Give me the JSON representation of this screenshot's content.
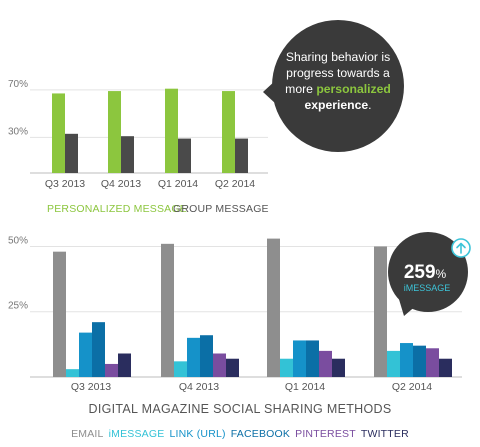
{
  "colors": {
    "green": "#8cc63e",
    "dark": "#4a4a4a",
    "gray": "#8e8e8e",
    "imessage": "#33c2d6",
    "link": "#1592c9",
    "facebook": "#0b6fa6",
    "pinterest": "#7a4d9f",
    "twitter": "#2a2d5e",
    "callout_bg": "#3a3a3a",
    "highlight": "#8cc63e"
  },
  "callout": {
    "line1": "Sharing behavior is",
    "line2": "progress towards a",
    "line3_pre": "more ",
    "line3_hl": "personalized",
    "line4": "experience",
    "line4_end": "."
  },
  "badge": {
    "value": "259",
    "unit": "%",
    "label": "iMESSAGE",
    "icon": "arrow-up-circle-icon"
  },
  "chart_data": [
    {
      "type": "bar",
      "categories": [
        "Q3 2013",
        "Q4 2013",
        "Q1 2014",
        "Q2 2014"
      ],
      "series": [
        {
          "name": "PERSONALIZED MESSAGE",
          "values": [
            67,
            69,
            71,
            69
          ]
        },
        {
          "name": "GROUP MESSAGE",
          "values": [
            33,
            31,
            29,
            29
          ]
        }
      ],
      "yticks": [
        "70%",
        "30%"
      ],
      "ytick_values": [
        70,
        30
      ],
      "ylim": [
        0,
        80
      ],
      "grid": true,
      "legend": "bottom-left"
    },
    {
      "type": "bar",
      "title": "DIGITAL MAGAZINE SOCIAL SHARING METHODS",
      "categories": [
        "Q3 2013",
        "Q4 2013",
        "Q1 2014",
        "Q2 2014"
      ],
      "series": [
        {
          "name": "EMAIL",
          "values": [
            48,
            51,
            53,
            50
          ]
        },
        {
          "name": "iMESSAGE",
          "values": [
            3,
            6,
            7,
            10
          ]
        },
        {
          "name": "LINK (URL)",
          "values": [
            17,
            15,
            14,
            13
          ]
        },
        {
          "name": "FACEBOOK",
          "values": [
            21,
            16,
            14,
            12
          ]
        },
        {
          "name": "PINTEREST",
          "values": [
            5,
            9,
            10,
            11
          ]
        },
        {
          "name": "TWITTER",
          "values": [
            9,
            7,
            7,
            7
          ]
        }
      ],
      "yticks": [
        "50%",
        "25%"
      ],
      "ytick_values": [
        50,
        25
      ],
      "ylim": [
        0,
        54
      ],
      "grid": true,
      "legend": "bottom-center"
    }
  ]
}
